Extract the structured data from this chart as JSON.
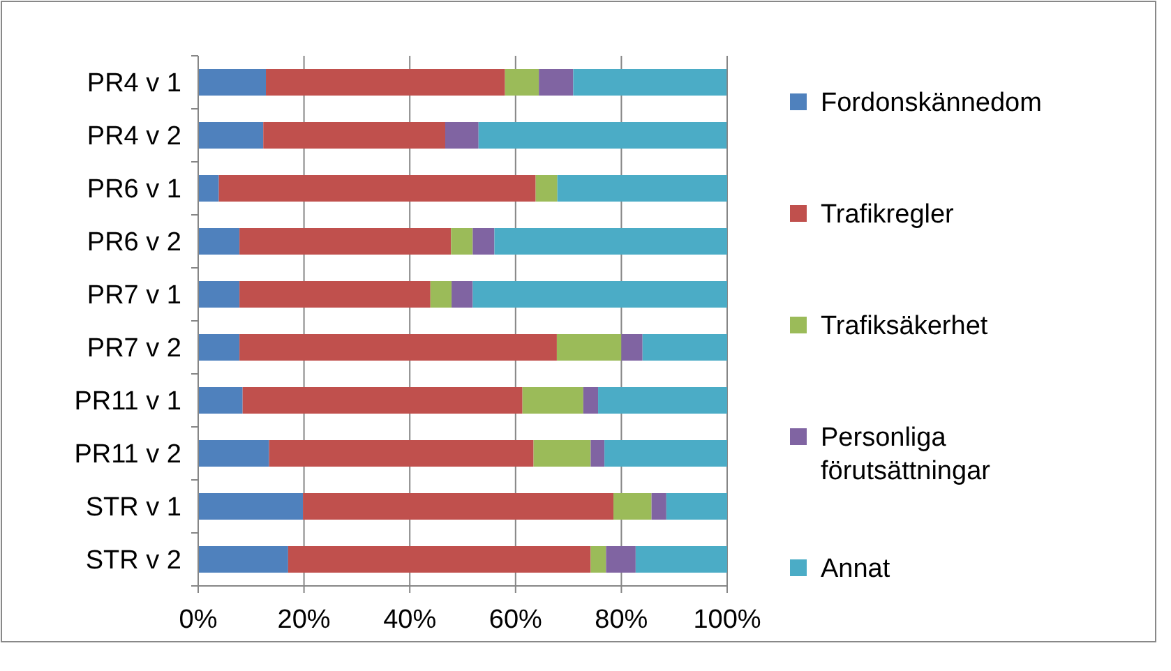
{
  "chart_data": {
    "type": "bar",
    "orientation": "horizontal",
    "stacked": true,
    "categories": [
      "PR4 v 1",
      "PR4 v 2",
      "PR6 v 1",
      "PR6 v 2",
      "PR7 v 1",
      "PR7 v 2",
      "PR11 v 1",
      "PR11 v 2",
      "STR v 1",
      "STR v 2"
    ],
    "series": [
      {
        "name": "Fordonskännedom",
        "color": "#4f81bd",
        "values": [
          12.8,
          12.3,
          3.9,
          7.8,
          7.8,
          7.8,
          8.4,
          13.4,
          19.8,
          17.0
        ]
      },
      {
        "name": "Trafikregler",
        "color": "#c0504d",
        "values": [
          45.2,
          34.4,
          59.9,
          40.0,
          36.1,
          60.0,
          52.9,
          50.0,
          58.7,
          57.2
        ]
      },
      {
        "name": "Trafiksäkerhet",
        "color": "#9bbb59",
        "values": [
          6.4,
          0,
          4.1,
          4.1,
          4.0,
          12.2,
          11.5,
          10.8,
          7.2,
          2.9
        ]
      },
      {
        "name": "Personliga förutsättningar",
        "color": "#8064a2",
        "values": [
          6.5,
          6.3,
          0,
          4.1,
          4.0,
          4.0,
          2.8,
          2.6,
          2.8,
          5.6
        ]
      },
      {
        "name": "Annat",
        "color": "#4bacc6",
        "values": [
          29.0,
          46.9,
          32.1,
          44.0,
          48.1,
          16.0,
          24.4,
          23.2,
          11.5,
          17.3
        ]
      }
    ],
    "xlim": [
      0,
      100
    ],
    "xticks": [
      {
        "value": 0,
        "label": "0%"
      },
      {
        "value": 20,
        "label": "20%"
      },
      {
        "value": 40,
        "label": "40%"
      },
      {
        "value": 60,
        "label": "60%"
      },
      {
        "value": 80,
        "label": "80%"
      },
      {
        "value": 100,
        "label": "100%"
      }
    ],
    "grid": "x",
    "legend": "right"
  }
}
